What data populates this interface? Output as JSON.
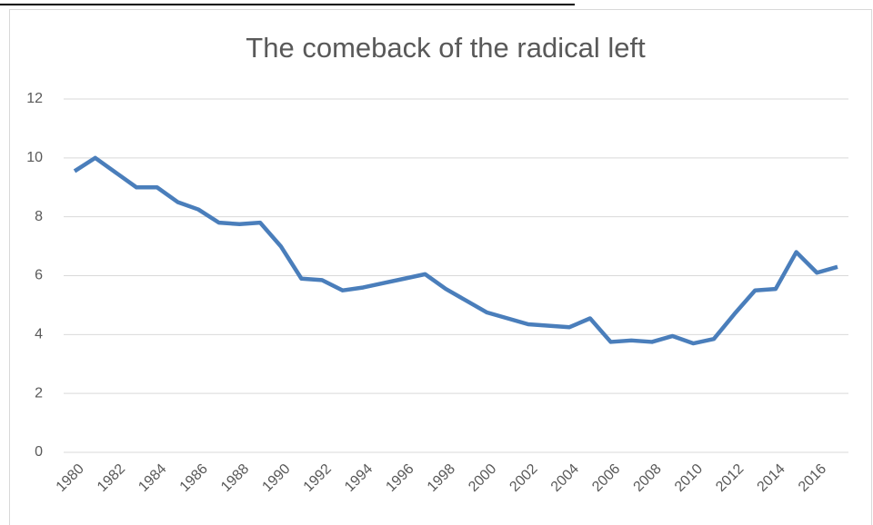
{
  "chart_data": {
    "type": "line",
    "title": "The comeback of the radical left",
    "x": [
      1980,
      1981,
      1982,
      1983,
      1984,
      1985,
      1986,
      1987,
      1988,
      1989,
      1990,
      1991,
      1992,
      1993,
      1994,
      1995,
      1996,
      1997,
      1998,
      1999,
      2000,
      2001,
      2002,
      2003,
      2004,
      2005,
      2006,
      2007,
      2008,
      2009,
      2010,
      2011,
      2012,
      2013,
      2014,
      2015,
      2016,
      2017
    ],
    "values": [
      9.55,
      10.0,
      9.5,
      9.0,
      9.0,
      8.5,
      8.25,
      7.8,
      7.75,
      7.8,
      7.0,
      5.9,
      5.85,
      5.5,
      5.6,
      5.75,
      5.9,
      6.05,
      5.55,
      5.15,
      4.75,
      4.55,
      4.35,
      4.3,
      4.25,
      4.55,
      3.75,
      3.8,
      3.75,
      3.95,
      3.7,
      3.85,
      4.7,
      5.5,
      5.55,
      6.8,
      6.1,
      6.3
    ],
    "color": "#4a7ebb",
    "xlim": [
      1980,
      2017
    ],
    "xticks": [
      1980,
      1982,
      1984,
      1986,
      1988,
      1990,
      1992,
      1994,
      1996,
      1998,
      2000,
      2002,
      2004,
      2006,
      2008,
      2010,
      2012,
      2014,
      2016
    ],
    "ylim": [
      0,
      12
    ],
    "yticks": [
      0,
      2,
      4,
      6,
      8,
      10,
      12
    ],
    "grid": true
  }
}
